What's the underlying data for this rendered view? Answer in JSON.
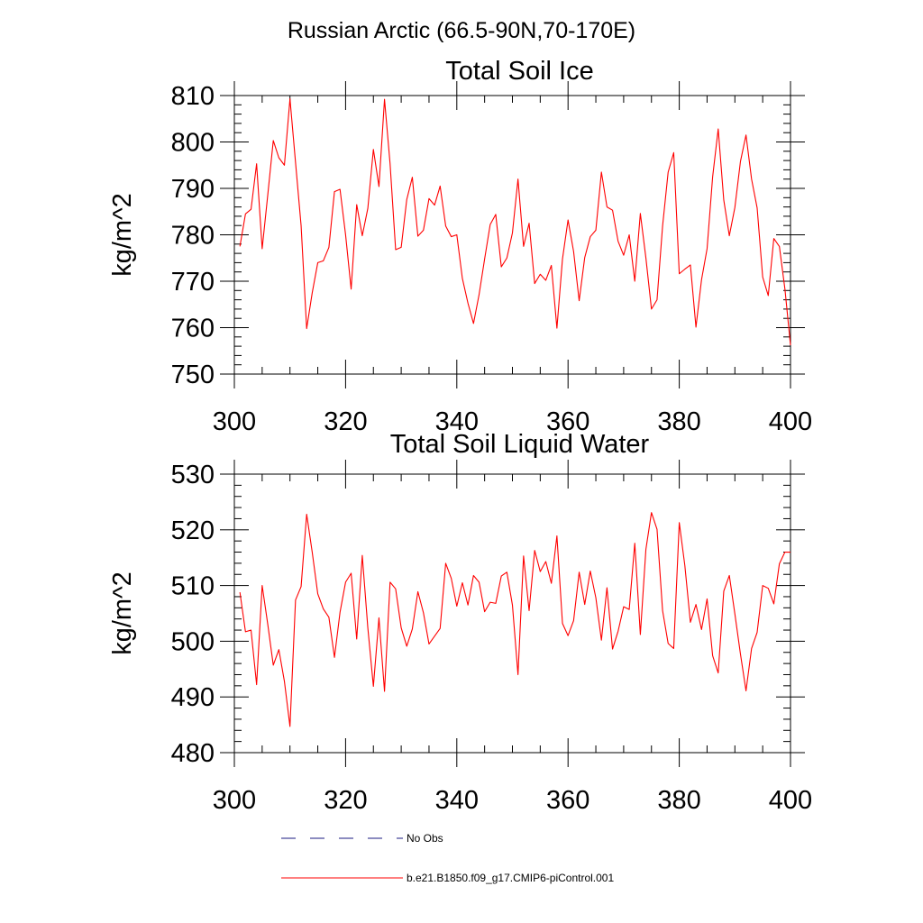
{
  "figure_title": "Russian Arctic (66.5-90N,70-170E)",
  "colors": {
    "model": "#ff0000",
    "obs": "#1a1a80",
    "axis": "#000000"
  },
  "legend": {
    "entries": [
      {
        "label": "No Obs",
        "style": "dashed",
        "color": "#1a1a80"
      },
      {
        "label": "b.e21.B1850.f09_g17.CMIP6-piControl.001",
        "style": "solid",
        "color": "#ff0000"
      }
    ]
  },
  "chart_data": [
    {
      "type": "line",
      "title": "Total Soil Ice",
      "xlabel": "",
      "ylabel": "kg/m^2",
      "xlim": [
        300,
        400
      ],
      "ylim": [
        750,
        810
      ],
      "xticks": [
        300,
        320,
        340,
        360,
        380,
        400
      ],
      "yticks": [
        750,
        760,
        770,
        780,
        790,
        800,
        810
      ],
      "series": [
        {
          "name": "b.e21.B1850.f09_g17.CMIP6-piControl.001",
          "x": [
            301,
            302,
            303,
            304,
            305,
            306,
            307,
            308,
            309,
            310,
            311,
            312,
            313,
            314,
            315,
            316,
            317,
            318,
            319,
            320,
            321,
            322,
            323,
            324,
            325,
            326,
            327,
            328,
            329,
            330,
            331,
            332,
            333,
            334,
            335,
            336,
            337,
            338,
            339,
            340,
            341,
            342,
            343,
            344,
            345,
            346,
            347,
            348,
            349,
            350,
            351,
            352,
            353,
            354,
            355,
            356,
            357,
            358,
            359,
            360,
            361,
            362,
            363,
            364,
            365,
            366,
            367,
            368,
            369,
            370,
            371,
            372,
            373,
            374,
            375,
            376,
            377,
            378,
            379,
            380,
            381,
            382,
            383,
            384,
            385,
            386,
            387,
            388,
            389,
            390,
            391,
            392,
            393,
            394,
            395,
            396,
            397,
            398,
            399,
            400
          ],
          "values": [
            777.5,
            784.5,
            785.5,
            795.3,
            777.0,
            788.5,
            800.3,
            796.6,
            795.0,
            809.3,
            795.6,
            782.0,
            759.8,
            767.5,
            774.0,
            774.4,
            777.3,
            789.3,
            789.8,
            780.0,
            768.3,
            786.5,
            779.8,
            785.7,
            798.4,
            790.4,
            809.2,
            795.3,
            776.8,
            777.3,
            787.6,
            792.4,
            779.7,
            781.0,
            787.8,
            786.4,
            790.5,
            781.9,
            779.6,
            780.0,
            770.6,
            765.3,
            760.9,
            767.1,
            774.8,
            782.2,
            784.4,
            773.1,
            775.0,
            780.4,
            792.0,
            777.5,
            782.5,
            769.5,
            771.5,
            770.2,
            773.4,
            759.9,
            774.8,
            783.2,
            776.4,
            765.8,
            775.1,
            779.6,
            781.0,
            793.5,
            786.0,
            785.3,
            778.6,
            775.6,
            780.0,
            770.0,
            784.6,
            775.0,
            764.0,
            766.0,
            781.9,
            793.5,
            797.7,
            771.6,
            772.6,
            773.5,
            760.1,
            770.3,
            777.0,
            792.5,
            802.8,
            787.5,
            779.8,
            785.9,
            795.8,
            801.5,
            792.0,
            785.8,
            770.9,
            766.9,
            779.2,
            777.5,
            768.3,
            756.2
          ]
        }
      ]
    },
    {
      "type": "line",
      "title": "Total Soil Liquid Water",
      "xlabel": "",
      "ylabel": "kg/m^2",
      "xlim": [
        300,
        400
      ],
      "ylim": [
        480,
        530
      ],
      "xticks": [
        300,
        320,
        340,
        360,
        380,
        400
      ],
      "yticks": [
        480,
        490,
        500,
        510,
        520,
        530
      ],
      "series": [
        {
          "name": "b.e21.B1850.f09_g17.CMIP6-piControl.001",
          "x": [
            301,
            302,
            303,
            304,
            305,
            306,
            307,
            308,
            309,
            310,
            311,
            312,
            313,
            314,
            315,
            316,
            317,
            318,
            319,
            320,
            321,
            322,
            323,
            324,
            325,
            326,
            327,
            328,
            329,
            330,
            331,
            332,
            333,
            334,
            335,
            336,
            337,
            338,
            339,
            340,
            341,
            342,
            343,
            344,
            345,
            346,
            347,
            348,
            349,
            350,
            351,
            352,
            353,
            354,
            355,
            356,
            357,
            358,
            359,
            360,
            361,
            362,
            363,
            364,
            365,
            366,
            367,
            368,
            369,
            370,
            371,
            372,
            373,
            374,
            375,
            376,
            377,
            378,
            379,
            380,
            381,
            382,
            383,
            384,
            385,
            386,
            387,
            388,
            389,
            390,
            391,
            392,
            393,
            394,
            395,
            396,
            397,
            398,
            399,
            400
          ],
          "values": [
            508.8,
            501.7,
            502.0,
            492.2,
            510.0,
            503.1,
            495.7,
            498.5,
            492.8,
            484.7,
            507.4,
            509.8,
            522.8,
            516.0,
            508.5,
            505.8,
            504.3,
            497.1,
            505.2,
            510.6,
            512.2,
            500.4,
            515.4,
            502.4,
            491.9,
            504.2,
            491.0,
            510.6,
            509.4,
            502.4,
            499.1,
            502.2,
            508.9,
            505.1,
            499.5,
            500.9,
            502.3,
            514.0,
            511.3,
            506.3,
            510.5,
            506.5,
            511.8,
            510.6,
            505.3,
            507.0,
            506.8,
            511.7,
            512.4,
            506.5,
            494.0,
            515.3,
            505.5,
            516.3,
            512.5,
            514.3,
            510.4,
            518.9,
            503.2,
            501.0,
            503.7,
            512.4,
            506.6,
            512.6,
            507.8,
            500.2,
            509.6,
            498.6,
            501.8,
            506.2,
            505.7,
            517.6,
            501.2,
            516.5,
            523.1,
            520.1,
            505.5,
            499.6,
            498.7,
            521.3,
            513.6,
            503.4,
            506.6,
            502.1,
            507.6,
            497.4,
            494.3,
            509.0,
            511.8,
            504.9,
            497.7,
            491.1,
            498.7,
            501.6,
            510.0,
            509.5,
            506.7,
            513.9,
            516.0,
            516.0
          ]
        }
      ]
    }
  ]
}
